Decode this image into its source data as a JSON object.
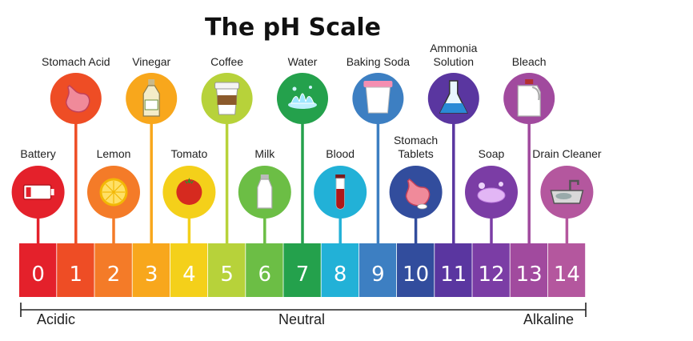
{
  "title": "The pH Scale",
  "levels": [
    {
      "ph": "0",
      "color": "#e4212b"
    },
    {
      "ph": "1",
      "color": "#ee4d25"
    },
    {
      "ph": "2",
      "color": "#f47b28"
    },
    {
      "ph": "3",
      "color": "#f8a71c"
    },
    {
      "ph": "4",
      "color": "#f4d01a"
    },
    {
      "ph": "5",
      "color": "#b7d23a"
    },
    {
      "ph": "6",
      "color": "#6cbe45"
    },
    {
      "ph": "7",
      "color": "#24a14c"
    },
    {
      "ph": "8",
      "color": "#22b1d7"
    },
    {
      "ph": "9",
      "color": "#3d7fc2"
    },
    {
      "ph": "10",
      "color": "#324d9d"
    },
    {
      "ph": "11",
      "color": "#5a36a0"
    },
    {
      "ph": "12",
      "color": "#7b3da5"
    },
    {
      "ph": "13",
      "color": "#a14a9e"
    },
    {
      "ph": "14",
      "color": "#b4579e"
    }
  ],
  "substances": [
    {
      "label": [
        "Battery"
      ],
      "ph": 0,
      "row": "low",
      "icon": "battery-icon"
    },
    {
      "label": [
        "Stomach Acid"
      ],
      "ph": 1,
      "row": "high",
      "icon": "stomach-icon"
    },
    {
      "label": [
        "Lemon"
      ],
      "ph": 2,
      "row": "low",
      "icon": "lemon-icon"
    },
    {
      "label": [
        "Vinegar"
      ],
      "ph": 3,
      "row": "high",
      "icon": "vinegar-bottle-icon"
    },
    {
      "label": [
        "Tomato"
      ],
      "ph": 4,
      "row": "low",
      "icon": "tomato-icon"
    },
    {
      "label": [
        "Coffee"
      ],
      "ph": 5,
      "row": "high",
      "icon": "coffee-cup-icon"
    },
    {
      "label": [
        "Milk"
      ],
      "ph": 6,
      "row": "low",
      "icon": "milk-bottle-icon"
    },
    {
      "label": [
        "Water"
      ],
      "ph": 7,
      "row": "high",
      "icon": "water-splash-icon"
    },
    {
      "label": [
        "Blood"
      ],
      "ph": 8,
      "row": "low",
      "icon": "blood-tube-icon"
    },
    {
      "label": [
        "Baking Soda"
      ],
      "ph": 9,
      "row": "high",
      "icon": "baking-soda-icon"
    },
    {
      "label": [
        "Stomach",
        "Tablets"
      ],
      "ph": 10,
      "row": "low",
      "icon": "stomach-tablets-icon"
    },
    {
      "label": [
        "Ammonia",
        "Solution"
      ],
      "ph": 11,
      "row": "high",
      "icon": "flask-icon"
    },
    {
      "label": [
        "Soap"
      ],
      "ph": 12,
      "row": "low",
      "icon": "soap-icon"
    },
    {
      "label": [
        "Bleach"
      ],
      "ph": 13,
      "row": "high",
      "icon": "bleach-jug-icon"
    },
    {
      "label": [
        "Drain Cleaner"
      ],
      "ph": 14,
      "row": "low",
      "icon": "sink-icon"
    }
  ],
  "axis": {
    "left": "Acidic",
    "middle": "Neutral",
    "right": "Alkaline"
  }
}
